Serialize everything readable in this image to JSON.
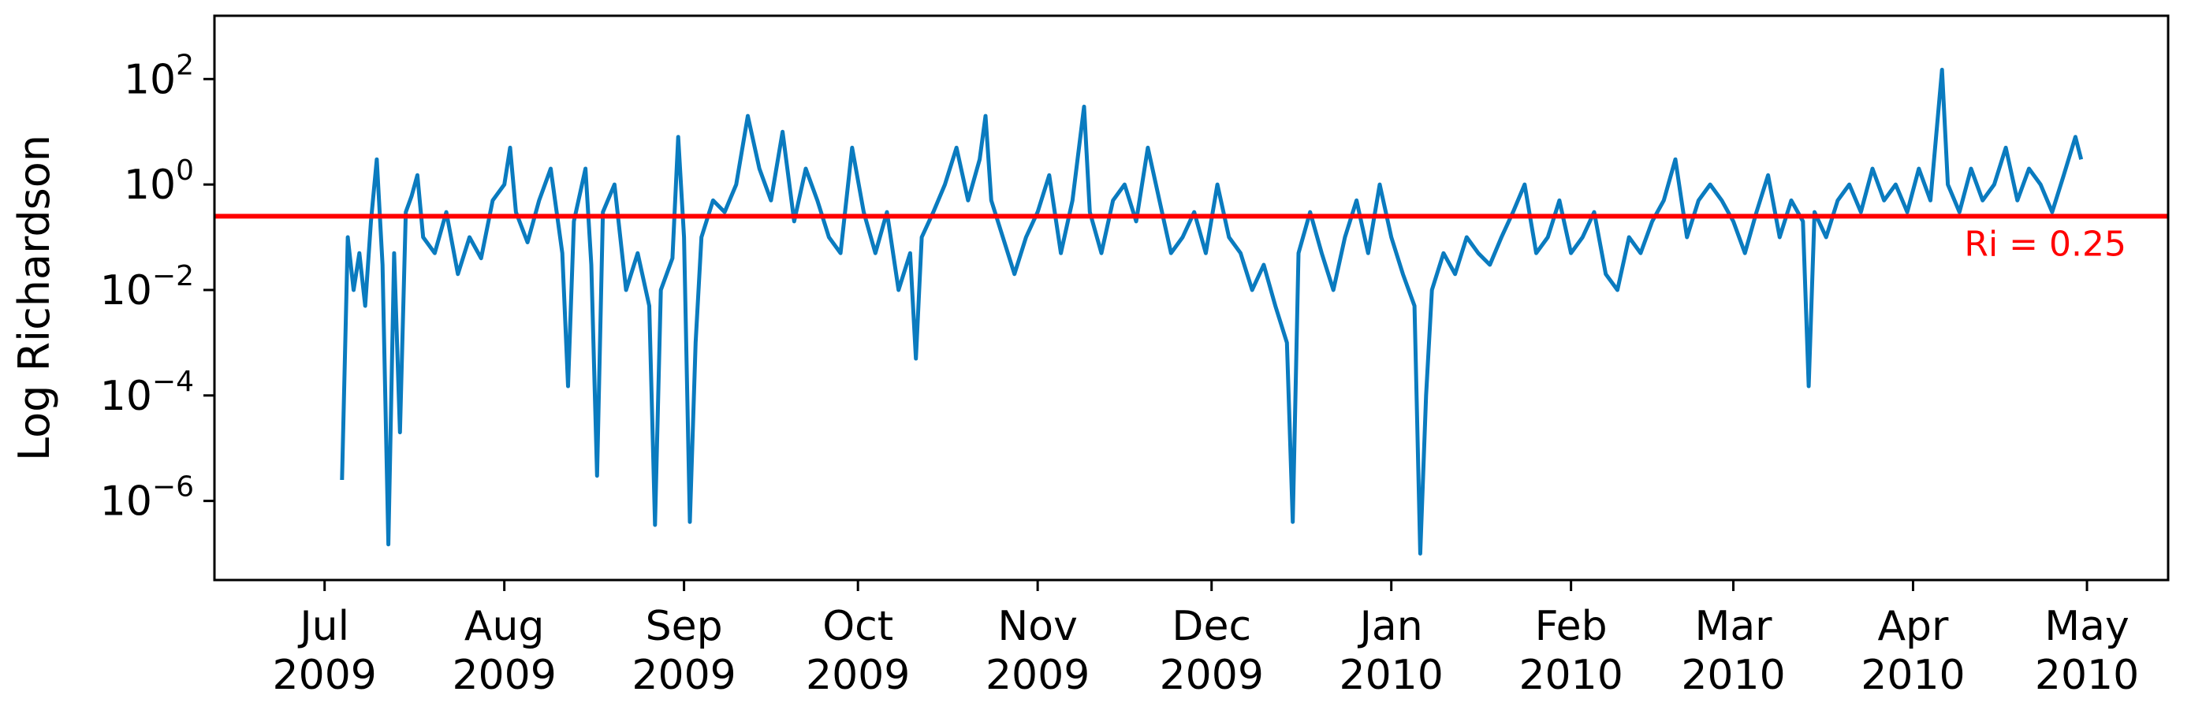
{
  "chart_data": {
    "type": "line",
    "ylabel": "Log Richardson",
    "yscale": "log",
    "ylim_exponents": [
      -7.5,
      3.2
    ],
    "y_ticks": [
      {
        "exp": 2,
        "label": "10",
        "sup": "2"
      },
      {
        "exp": 0,
        "label": "10",
        "sup": "0"
      },
      {
        "exp": -2,
        "label": "10",
        "sup": "−2"
      },
      {
        "exp": -4,
        "label": "10",
        "sup": "−4"
      },
      {
        "exp": -6,
        "label": "10",
        "sup": "−6"
      }
    ],
    "x_ticks": [
      {
        "date": "2009-07-01",
        "month": "Jul",
        "year": "2009"
      },
      {
        "date": "2009-08-01",
        "month": "Aug",
        "year": "2009"
      },
      {
        "date": "2009-09-01",
        "month": "Sep",
        "year": "2009"
      },
      {
        "date": "2009-10-01",
        "month": "Oct",
        "year": "2009"
      },
      {
        "date": "2009-11-01",
        "month": "Nov",
        "year": "2009"
      },
      {
        "date": "2009-12-01",
        "month": "Dec",
        "year": "2009"
      },
      {
        "date": "2010-01-01",
        "month": "Jan",
        "year": "2010"
      },
      {
        "date": "2010-02-01",
        "month": "Feb",
        "year": "2010"
      },
      {
        "date": "2010-03-01",
        "month": "Mar",
        "year": "2010"
      },
      {
        "date": "2010-04-01",
        "month": "Apr",
        "year": "2010"
      },
      {
        "date": "2010-05-01",
        "month": "May",
        "year": "2010"
      }
    ],
    "xlim": [
      "2009-06-12",
      "2010-05-15"
    ],
    "threshold": {
      "value": 0.25,
      "label": "Ri = 0.25",
      "color": "#ff0000"
    },
    "series": [
      {
        "color": "#0a7bbf",
        "points": [
          [
            "2009-07-04",
            2.5e-06
          ],
          [
            "2009-07-05",
            0.1
          ],
          [
            "2009-07-06",
            0.01
          ],
          [
            "2009-07-07",
            0.05
          ],
          [
            "2009-07-08",
            0.005
          ],
          [
            "2009-07-09",
            0.2
          ],
          [
            "2009-07-10",
            3.0
          ],
          [
            "2009-07-11",
            0.03
          ],
          [
            "2009-07-12",
            1.5e-07
          ],
          [
            "2009-07-13",
            0.05
          ],
          [
            "2009-07-14",
            2e-05
          ],
          [
            "2009-07-15",
            0.3
          ],
          [
            "2009-07-16",
            0.6
          ],
          [
            "2009-07-17",
            1.5
          ],
          [
            "2009-07-18",
            0.1
          ],
          [
            "2009-07-20",
            0.05
          ],
          [
            "2009-07-22",
            0.3
          ],
          [
            "2009-07-24",
            0.02
          ],
          [
            "2009-07-26",
            0.1
          ],
          [
            "2009-07-28",
            0.04
          ],
          [
            "2009-07-30",
            0.5
          ],
          [
            "2009-08-01",
            1.0
          ],
          [
            "2009-08-02",
            5.0
          ],
          [
            "2009-08-03",
            0.3
          ],
          [
            "2009-08-05",
            0.08
          ],
          [
            "2009-08-07",
            0.5
          ],
          [
            "2009-08-09",
            2.0
          ],
          [
            "2009-08-11",
            0.05
          ],
          [
            "2009-08-12",
            0.00015
          ],
          [
            "2009-08-13",
            0.2
          ],
          [
            "2009-08-15",
            2.0
          ],
          [
            "2009-08-16",
            0.03
          ],
          [
            "2009-08-17",
            3e-06
          ],
          [
            "2009-08-18",
            0.3
          ],
          [
            "2009-08-20",
            1.0
          ],
          [
            "2009-08-22",
            0.01
          ],
          [
            "2009-08-24",
            0.05
          ],
          [
            "2009-08-26",
            0.005
          ],
          [
            "2009-08-27",
            3.5e-07
          ],
          [
            "2009-08-28",
            0.01
          ],
          [
            "2009-08-30",
            0.04
          ],
          [
            "2009-08-31",
            8.0
          ],
          [
            "2009-09-01",
            0.1
          ],
          [
            "2009-09-02",
            4e-07
          ],
          [
            "2009-09-03",
            0.001
          ],
          [
            "2009-09-04",
            0.1
          ],
          [
            "2009-09-06",
            0.5
          ],
          [
            "2009-09-08",
            0.3
          ],
          [
            "2009-09-10",
            1.0
          ],
          [
            "2009-09-12",
            20.0
          ],
          [
            "2009-09-14",
            2.0
          ],
          [
            "2009-09-16",
            0.5
          ],
          [
            "2009-09-18",
            10.0
          ],
          [
            "2009-09-20",
            0.2
          ],
          [
            "2009-09-22",
            2.0
          ],
          [
            "2009-09-24",
            0.5
          ],
          [
            "2009-09-26",
            0.1
          ],
          [
            "2009-09-28",
            0.05
          ],
          [
            "2009-09-30",
            5.0
          ],
          [
            "2009-10-02",
            0.3
          ],
          [
            "2009-10-04",
            0.05
          ],
          [
            "2009-10-06",
            0.3
          ],
          [
            "2009-10-08",
            0.01
          ],
          [
            "2009-10-10",
            0.05
          ],
          [
            "2009-10-11",
            0.0005
          ],
          [
            "2009-10-12",
            0.1
          ],
          [
            "2009-10-14",
            0.3
          ],
          [
            "2009-10-16",
            1.0
          ],
          [
            "2009-10-18",
            5.0
          ],
          [
            "2009-10-20",
            0.5
          ],
          [
            "2009-10-22",
            3.0
          ],
          [
            "2009-10-23",
            20.0
          ],
          [
            "2009-10-24",
            0.5
          ],
          [
            "2009-10-26",
            0.1
          ],
          [
            "2009-10-28",
            0.02
          ],
          [
            "2009-10-30",
            0.1
          ],
          [
            "2009-11-01",
            0.3
          ],
          [
            "2009-11-03",
            1.5
          ],
          [
            "2009-11-05",
            0.05
          ],
          [
            "2009-11-07",
            0.5
          ],
          [
            "2009-11-09",
            30.0
          ],
          [
            "2009-11-10",
            0.3
          ],
          [
            "2009-11-12",
            0.05
          ],
          [
            "2009-11-14",
            0.5
          ],
          [
            "2009-11-16",
            1.0
          ],
          [
            "2009-11-18",
            0.2
          ],
          [
            "2009-11-20",
            5.0
          ],
          [
            "2009-11-22",
            0.5
          ],
          [
            "2009-11-24",
            0.05
          ],
          [
            "2009-11-26",
            0.1
          ],
          [
            "2009-11-28",
            0.3
          ],
          [
            "2009-11-30",
            0.05
          ],
          [
            "2009-12-02",
            1.0
          ],
          [
            "2009-12-04",
            0.1
          ],
          [
            "2009-12-06",
            0.05
          ],
          [
            "2009-12-08",
            0.01
          ],
          [
            "2009-12-10",
            0.03
          ],
          [
            "2009-12-12",
            0.005
          ],
          [
            "2009-12-14",
            0.001
          ],
          [
            "2009-12-15",
            4e-07
          ],
          [
            "2009-12-16",
            0.05
          ],
          [
            "2009-12-18",
            0.3
          ],
          [
            "2009-12-20",
            0.05
          ],
          [
            "2009-12-22",
            0.01
          ],
          [
            "2009-12-24",
            0.1
          ],
          [
            "2009-12-26",
            0.5
          ],
          [
            "2009-12-28",
            0.05
          ],
          [
            "2009-12-30",
            1.0
          ],
          [
            "2010-01-01",
            0.1
          ],
          [
            "2010-01-03",
            0.02
          ],
          [
            "2010-01-05",
            0.005
          ],
          [
            "2010-01-06",
            1e-07
          ],
          [
            "2010-01-07",
            0.0001
          ],
          [
            "2010-01-08",
            0.01
          ],
          [
            "2010-01-10",
            0.05
          ],
          [
            "2010-01-12",
            0.02
          ],
          [
            "2010-01-14",
            0.1
          ],
          [
            "2010-01-16",
            0.05
          ],
          [
            "2010-01-18",
            0.03
          ],
          [
            "2010-01-20",
            0.1
          ],
          [
            "2010-01-22",
            0.3
          ],
          [
            "2010-01-24",
            1.0
          ],
          [
            "2010-01-26",
            0.05
          ],
          [
            "2010-01-28",
            0.1
          ],
          [
            "2010-01-30",
            0.5
          ],
          [
            "2010-02-01",
            0.05
          ],
          [
            "2010-02-03",
            0.1
          ],
          [
            "2010-02-05",
            0.3
          ],
          [
            "2010-02-07",
            0.02
          ],
          [
            "2010-02-09",
            0.01
          ],
          [
            "2010-02-11",
            0.1
          ],
          [
            "2010-02-13",
            0.05
          ],
          [
            "2010-02-15",
            0.2
          ],
          [
            "2010-02-17",
            0.5
          ],
          [
            "2010-02-19",
            3.0
          ],
          [
            "2010-02-21",
            0.1
          ],
          [
            "2010-02-23",
            0.5
          ],
          [
            "2010-02-25",
            1.0
          ],
          [
            "2010-02-27",
            0.5
          ],
          [
            "2010-03-01",
            0.2
          ],
          [
            "2010-03-03",
            0.05
          ],
          [
            "2010-03-05",
            0.3
          ],
          [
            "2010-03-07",
            1.5
          ],
          [
            "2010-03-09",
            0.1
          ],
          [
            "2010-03-11",
            0.5
          ],
          [
            "2010-03-13",
            0.2
          ],
          [
            "2010-03-14",
            0.00015
          ],
          [
            "2010-03-15",
            0.3
          ],
          [
            "2010-03-17",
            0.1
          ],
          [
            "2010-03-19",
            0.5
          ],
          [
            "2010-03-21",
            1.0
          ],
          [
            "2010-03-23",
            0.3
          ],
          [
            "2010-03-25",
            2.0
          ],
          [
            "2010-03-27",
            0.5
          ],
          [
            "2010-03-29",
            1.0
          ],
          [
            "2010-03-31",
            0.3
          ],
          [
            "2010-04-02",
            2.0
          ],
          [
            "2010-04-04",
            0.5
          ],
          [
            "2010-04-06",
            150.0
          ],
          [
            "2010-04-07",
            1.0
          ],
          [
            "2010-04-09",
            0.3
          ],
          [
            "2010-04-11",
            2.0
          ],
          [
            "2010-04-13",
            0.5
          ],
          [
            "2010-04-15",
            1.0
          ],
          [
            "2010-04-17",
            5.0
          ],
          [
            "2010-04-19",
            0.5
          ],
          [
            "2010-04-21",
            2.0
          ],
          [
            "2010-04-23",
            1.0
          ],
          [
            "2010-04-25",
            0.3
          ],
          [
            "2010-04-27",
            1.5
          ],
          [
            "2010-04-29",
            8.0
          ],
          [
            "2010-04-30",
            3.0
          ]
        ]
      }
    ]
  }
}
